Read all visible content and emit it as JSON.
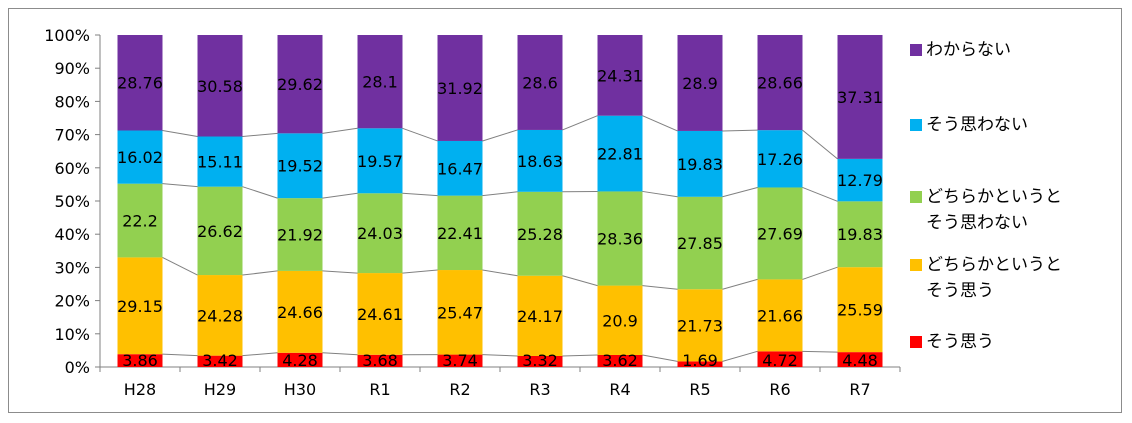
{
  "chart_data": {
    "type": "bar",
    "stacked": true,
    "percent": true,
    "categories": [
      "H28",
      "H29",
      "H30",
      "R1",
      "R2",
      "R3",
      "R4",
      "R5",
      "R6",
      "R7"
    ],
    "y_ticks": [
      "0%",
      "10%",
      "20%",
      "30%",
      "40%",
      "50%",
      "60%",
      "70%",
      "80%",
      "90%",
      "100%"
    ],
    "ylim": [
      0,
      100
    ],
    "legend_position": "right",
    "series": [
      {
        "name": "そう思う",
        "color": "#ff0000",
        "values": [
          3.86,
          3.42,
          4.28,
          3.68,
          3.74,
          3.32,
          3.62,
          1.69,
          4.72,
          4.48
        ],
        "labels": [
          "3.86",
          "3.42",
          "4.28",
          "3.68",
          "3.74",
          "3.32",
          "3.62",
          "1.69",
          "4.72",
          "4.48"
        ]
      },
      {
        "name": "どちらかというとそう思う",
        "legend_lines": [
          "どちらかというと",
          "そう思う"
        ],
        "color": "#ffc000",
        "values": [
          29.15,
          24.28,
          24.66,
          24.61,
          25.47,
          24.17,
          20.9,
          21.73,
          21.66,
          25.59
        ],
        "labels": [
          "29.15",
          "24.28",
          "24.66",
          "24.61",
          "25.47",
          "24.17",
          "20.9",
          "21.73",
          "21.66",
          "25.59"
        ]
      },
      {
        "name": "どちらかというとそう思わない",
        "legend_lines": [
          "どちらかというと",
          "そう思わない"
        ],
        "color": "#92d050",
        "values": [
          22.2,
          26.62,
          21.92,
          24.03,
          22.41,
          25.28,
          28.36,
          27.85,
          27.69,
          19.83
        ],
        "labels": [
          "22.2",
          "26.62",
          "21.92",
          "24.03",
          "22.41",
          "25.28",
          "28.36",
          "27.85",
          "27.69",
          "19.83"
        ]
      },
      {
        "name": "そう思わない",
        "color": "#00b0f0",
        "values": [
          16.02,
          15.11,
          19.52,
          19.57,
          16.47,
          18.63,
          22.81,
          19.83,
          17.26,
          12.79
        ],
        "labels": [
          "16.02",
          "15.11",
          "19.52",
          "19.57",
          "16.47",
          "18.63",
          "22.81",
          "19.83",
          "17.26",
          "12.79"
        ]
      },
      {
        "name": "わからない",
        "color": "#7030a0",
        "values": [
          28.76,
          30.58,
          29.62,
          28.1,
          31.92,
          28.6,
          24.31,
          28.9,
          28.66,
          37.31
        ],
        "labels": [
          "28.76",
          "30.58",
          "29.62",
          "28.1",
          "31.92",
          "28.6",
          "24.31",
          "28.9",
          "28.66",
          "37.31"
        ]
      }
    ],
    "legend_order": [
      4,
      3,
      2,
      1,
      0
    ],
    "series_lines": true,
    "grid": false
  }
}
